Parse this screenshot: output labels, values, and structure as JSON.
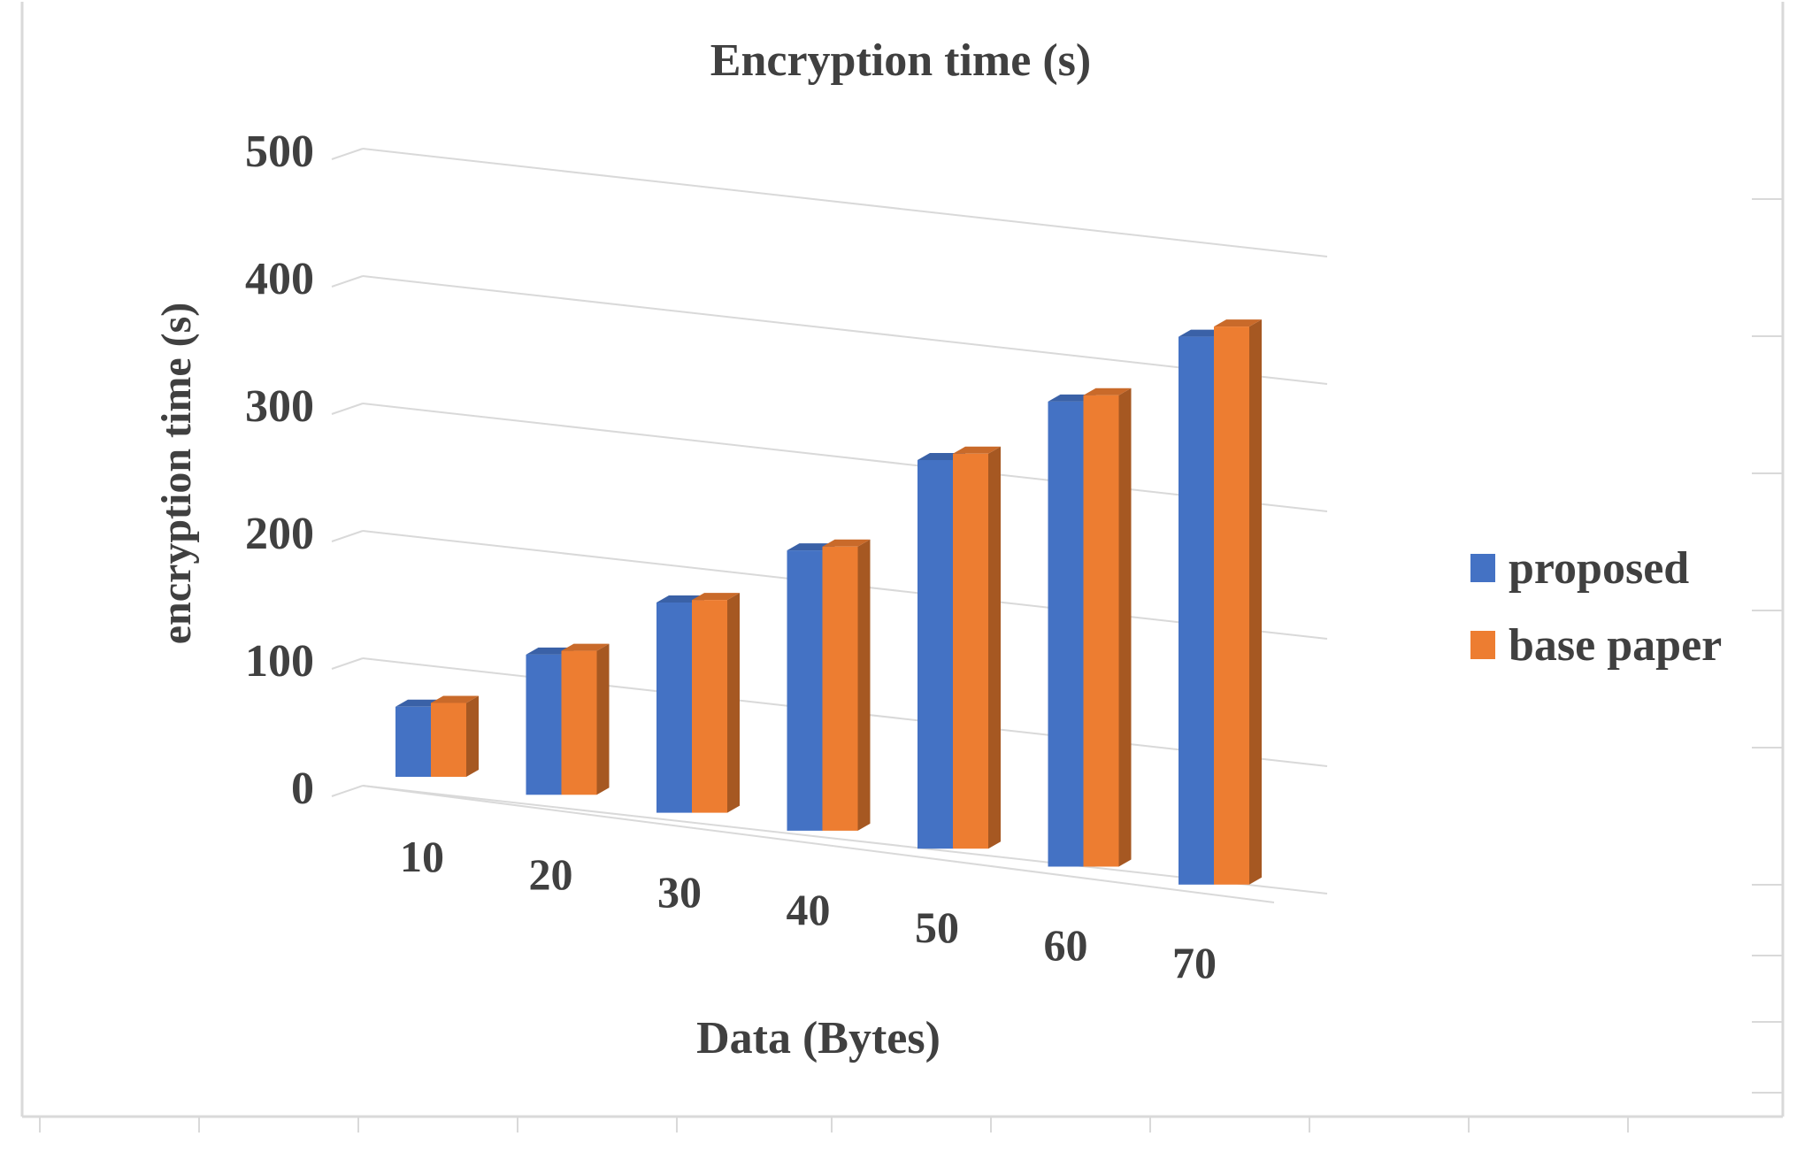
{
  "chart_data": {
    "type": "bar",
    "title": "Encryption time (s)",
    "xlabel": "Data (Bytes)",
    "ylabel": "encryption time (s)",
    "categories": [
      "10",
      "20",
      "30",
      "40",
      "50",
      "60",
      "70"
    ],
    "yticks": [
      "0",
      "100",
      "200",
      "300",
      "400",
      "500"
    ],
    "ylim": [
      0,
      500
    ],
    "grid": true,
    "legend_position": "right",
    "series": [
      {
        "name": "proposed",
        "values": [
          55,
          110,
          165,
          220,
          305,
          365,
          430
        ],
        "color": "#4472C4"
      },
      {
        "name": "base paper",
        "values": [
          58,
          113,
          167,
          223,
          310,
          370,
          438
        ],
        "color": "#ED7D31"
      }
    ]
  }
}
